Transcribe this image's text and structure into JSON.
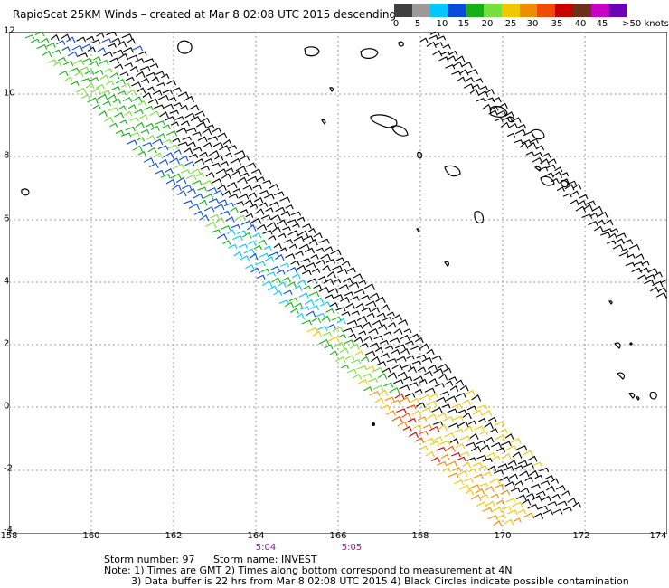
{
  "title": "RapidScat 25KM Winds – created at Mar  8 02:08 UTC 2015 descending",
  "legend": {
    "colors": [
      "#404040",
      "#9a9a9a",
      "#00c8ff",
      "#0a4ad8",
      "#16b016",
      "#78e03c",
      "#f0c800",
      "#f08c00",
      "#f04a00",
      "#c80000",
      "#6e3018",
      "#c800c8",
      "#6a00b8"
    ],
    "labels": [
      "0",
      "5",
      "10",
      "15",
      "20",
      "25",
      "30",
      "35",
      "40",
      "45",
      ">50 knots"
    ]
  },
  "map": {
    "lat_labels": [
      "12",
      "10",
      "8",
      "6",
      "4",
      "2",
      "0",
      "-2",
      "-4"
    ],
    "lon_labels": [
      "158",
      "160",
      "162",
      "164",
      "166",
      "168",
      "170",
      "172",
      "174"
    ],
    "times": [
      "5:04",
      "5:05"
    ],
    "lon_range": [
      158,
      174
    ],
    "lat_range": [
      -4,
      12
    ]
  },
  "footer": {
    "storm_number": "Storm number: 97",
    "storm_name": "Storm name: INVEST",
    "note1": "Note: 1) Times are GMT  2) Times along bottom correspond to measurement at 4N",
    "note2": "3) Data buffer is 22 hrs from Mar  8 02:08 UTC 2015   4) Black Circles indicate possible contamination"
  }
}
